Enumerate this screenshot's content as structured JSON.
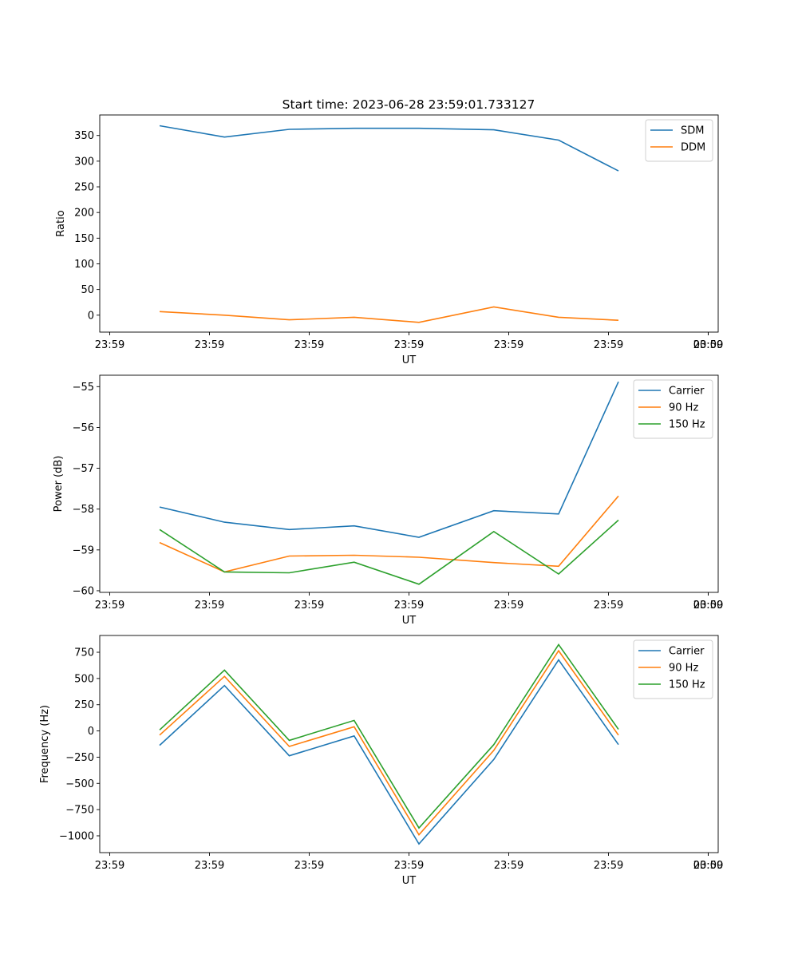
{
  "figure": {
    "title": "Start time: 2023-06-28 23:59:01.733127"
  },
  "chart_data": [
    {
      "type": "line",
      "title": "Start time: 2023-06-28 23:59:01.733127",
      "xlabel": "UT",
      "ylabel": "Ratio",
      "x": [
        1,
        2,
        3,
        4,
        5,
        6,
        7,
        8
      ],
      "x_tick_labels": [
        "23:59",
        "23:59",
        "23:59",
        "23:59",
        "23:59",
        "23:59",
        "23:59",
        "00:00"
      ],
      "y_ticks": [
        0,
        50,
        100,
        150,
        200,
        250,
        300,
        350
      ],
      "ylim": [
        -33,
        390
      ],
      "legend_position": "top-right",
      "grid": false,
      "series": [
        {
          "name": "SDM",
          "color": "#1f77b4",
          "values": [
            369,
            347,
            362,
            364,
            364,
            361,
            341,
            281
          ]
        },
        {
          "name": "DDM",
          "color": "#ff7f0e",
          "values": [
            7,
            0,
            -9,
            -4,
            -14,
            16,
            -4,
            -10
          ]
        }
      ]
    },
    {
      "type": "line",
      "title": "",
      "xlabel": "UT",
      "ylabel": "Power (dB)",
      "x": [
        1,
        2,
        3,
        4,
        5,
        6,
        7,
        8
      ],
      "x_tick_labels": [
        "23:59",
        "23:59",
        "23:59",
        "23:59",
        "23:59",
        "23:59",
        "23:59",
        "00:00"
      ],
      "y_ticks": [
        -60,
        -59,
        -58,
        -57,
        -56,
        -55
      ],
      "ylim": [
        -60.04,
        -54.72
      ],
      "legend_position": "top-right",
      "grid": false,
      "series": [
        {
          "name": "Carrier",
          "color": "#1f77b4",
          "values": [
            -57.95,
            -58.32,
            -58.5,
            -58.41,
            -58.69,
            -58.04,
            -58.12,
            -54.88
          ]
        },
        {
          "name": "90 Hz",
          "color": "#ff7f0e",
          "values": [
            -58.82,
            -59.54,
            -59.15,
            -59.13,
            -59.18,
            -59.31,
            -59.4,
            -57.68
          ]
        },
        {
          "name": "150 Hz",
          "color": "#2ca02c",
          "values": [
            -58.5,
            -59.54,
            -59.56,
            -59.3,
            -59.84,
            -58.55,
            -59.59,
            -58.27
          ]
        }
      ]
    },
    {
      "type": "line",
      "title": "",
      "xlabel": "UT",
      "ylabel": "Frequency (Hz)",
      "x": [
        1,
        2,
        3,
        4,
        5,
        6,
        7,
        8
      ],
      "x_tick_labels": [
        "23:59",
        "23:59",
        "23:59",
        "23:59",
        "23:59",
        "23:59",
        "23:59",
        "00:00"
      ],
      "y_ticks": [
        -1000,
        -750,
        -500,
        -250,
        0,
        250,
        500,
        750
      ],
      "ylim": [
        -1160,
        910
      ],
      "legend_position": "top-right",
      "grid": false,
      "series": [
        {
          "name": "Carrier",
          "color": "#1f77b4",
          "values": [
            -137,
            433,
            -237,
            -47,
            -1077,
            -272,
            677,
            -130
          ]
        },
        {
          "name": "90 Hz",
          "color": "#ff7f0e",
          "values": [
            -40,
            520,
            -148,
            40,
            -990,
            -185,
            765,
            -40
          ]
        },
        {
          "name": "150 Hz",
          "color": "#2ca02c",
          "values": [
            10,
            580,
            -90,
            100,
            -925,
            -130,
            823,
            15
          ]
        }
      ]
    }
  ]
}
